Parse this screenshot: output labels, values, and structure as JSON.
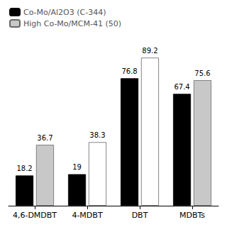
{
  "chart_data": {
    "type": "bar",
    "categories": [
      "4,6-DMDBT",
      "4-MDBT",
      "DBT",
      "MDBTs"
    ],
    "series": [
      {
        "name": "Co-Mo/Al2O3 (C-344)",
        "color": "#000000",
        "values": [
          18.2,
          19.0,
          76.8,
          67.4
        ]
      },
      {
        "name": "High Co-Mo/MCM-41 (50)",
        "colors": [
          "#c8c8c8",
          "#ffffff",
          "#ffffff",
          "#c8c8c8"
        ],
        "values": [
          36.7,
          38.3,
          89.2,
          75.6
        ]
      }
    ],
    "ylim": [
      0,
      100
    ],
    "grid": false,
    "legend": "upper left",
    "data_labels": true,
    "tick_labels": "x"
  }
}
